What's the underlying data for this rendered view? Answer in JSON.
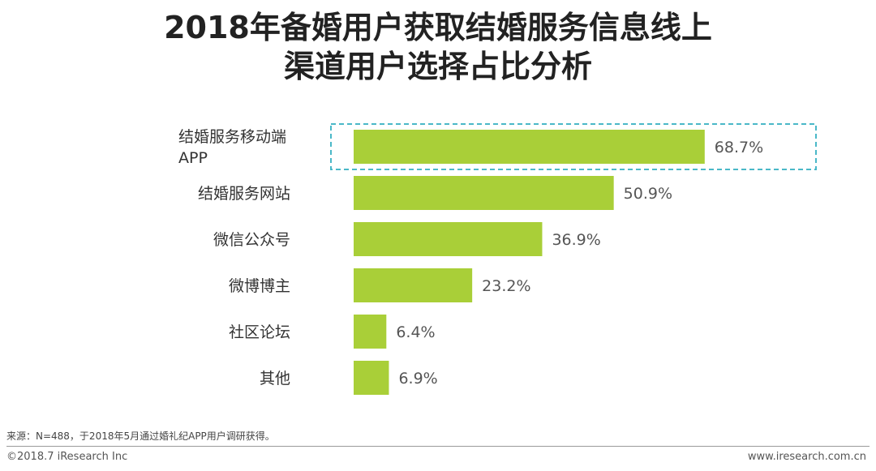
{
  "header": {
    "title_line1": "2018年备婚用户获取结婚服务信息线上",
    "title_line2": "渠道用户选择占比分析"
  },
  "chart_data": {
    "type": "bar",
    "orientation": "horizontal",
    "categories": [
      [
        "结婚服务移动端",
        "APP"
      ],
      [
        "结婚服务网站"
      ],
      [
        "微信公众号"
      ],
      [
        "微博博主"
      ],
      [
        "社区论坛"
      ],
      [
        "其他"
      ]
    ],
    "values": [
      68.7,
      50.9,
      36.9,
      23.2,
      6.4,
      6.9
    ],
    "value_labels": [
      "68.7%",
      "50.9%",
      "36.9%",
      "23.2%",
      "6.4%",
      "6.9%"
    ],
    "highlight_index": 0,
    "bar_color": "#a9cf38",
    "highlight_border_color": "#4ab8c8",
    "xlim": [
      0,
      70
    ],
    "grid": false,
    "legend": "none"
  },
  "footer": {
    "source": "来源：N=488，于2018年5月通过婚礼纪APP用户调研获得。",
    "copyright": "©2018.7 iResearch Inc",
    "website": "www.iresearch.com.cn"
  }
}
